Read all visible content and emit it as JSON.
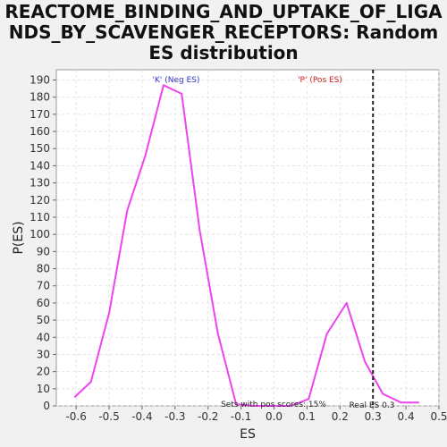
{
  "chart_data": {
    "type": "line",
    "title_lines": [
      "REACTOME_BINDING_AND_UPTAKE_OF_LIGA",
      "NDS_BY_SCAVENGER_RECEPTORS: Random",
      "ES distribution"
    ],
    "xlabel": "ES",
    "ylabel": "P(ES)",
    "xlim": [
      -0.66,
      0.5
    ],
    "ylim": [
      0,
      196
    ],
    "x_ticks": [
      -0.6,
      -0.5,
      -0.4,
      -0.3,
      -0.2,
      -0.1,
      0.0,
      0.1,
      0.2,
      0.3,
      0.4,
      0.5
    ],
    "x_tick_labels": [
      "-0.6",
      "-0.5",
      "-0.4",
      "-0.3",
      "-0.2",
      "-0.1",
      "0.0",
      "0.1",
      "0.2",
      "0.3",
      "0.4",
      "0.5"
    ],
    "y_ticks": [
      0,
      10,
      20,
      30,
      40,
      50,
      60,
      70,
      80,
      90,
      100,
      110,
      120,
      130,
      140,
      150,
      160,
      170,
      180,
      190
    ],
    "grid": true,
    "series": [
      {
        "color": "#ee44ee",
        "x": [
          -0.605,
          -0.555,
          -0.5,
          -0.445,
          -0.39,
          -0.335,
          -0.28,
          -0.225,
          -0.17,
          -0.115,
          -0.06,
          -0.005,
          0.05,
          0.105,
          0.16,
          0.22,
          0.275,
          0.33,
          0.385,
          0.44
        ],
        "y": [
          5,
          14,
          54,
          114,
          146,
          187,
          182,
          102,
          42,
          1,
          0,
          0,
          0,
          4,
          42,
          60,
          26,
          7,
          2,
          2
        ]
      }
    ],
    "real_es": 0.3,
    "annotations": {
      "neg_label": "'K' (Neg ES)",
      "pos_label": "'P' (Pos ES)",
      "pos_scores_text": "Sets with pos scores: 15%",
      "real_es_text": "Real ES 0.3"
    },
    "colors": {
      "neg_label": "#3333cc",
      "pos_label": "#cc2222",
      "line": "#ee44ee",
      "plot_bg": "#ffffff",
      "page_bg": "#f1f1f1"
    }
  }
}
